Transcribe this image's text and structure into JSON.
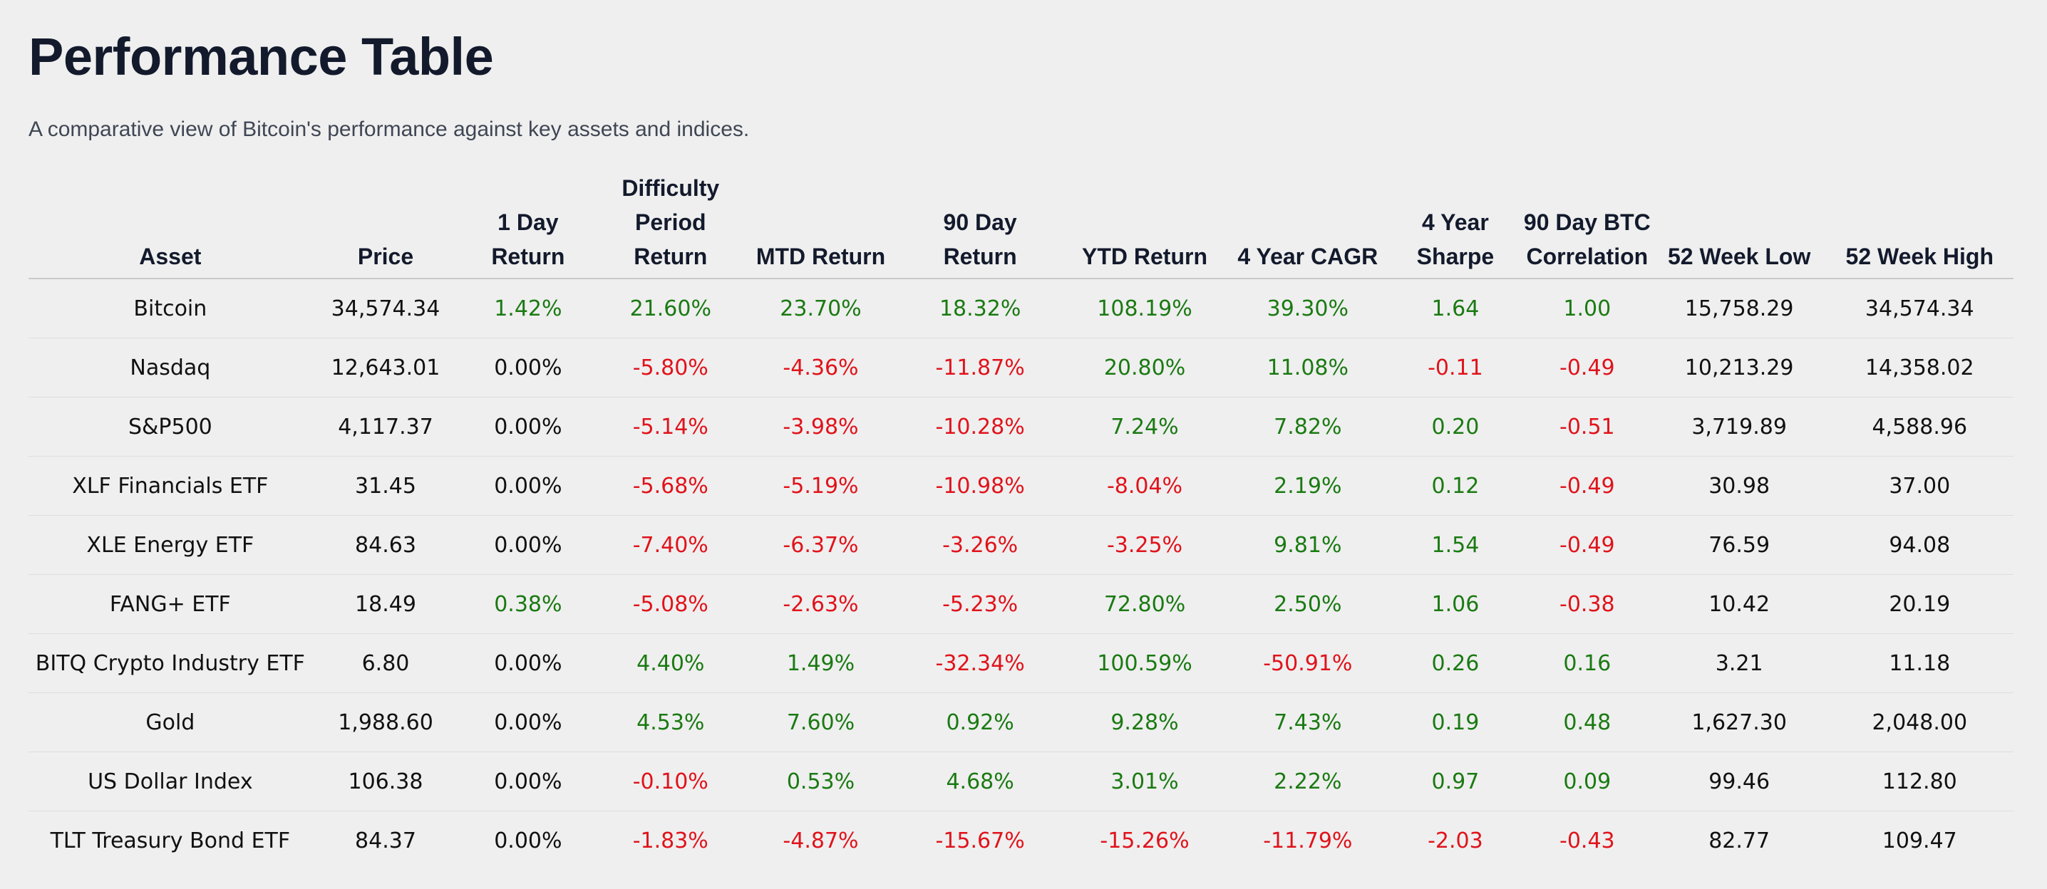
{
  "page": {
    "title": "Performance Table",
    "subtitle": "A comparative view of Bitcoin's performance against key assets and indices."
  },
  "colors": {
    "positive": "#1a7a12",
    "negative": "#e0131b",
    "neutral": "#111111",
    "title": "#131a2c",
    "background": "#efefef"
  },
  "table": {
    "headers": [
      {
        "key": "asset",
        "label": "Asset"
      },
      {
        "key": "price",
        "label": "Price"
      },
      {
        "key": "d1",
        "label": "1 Day Return"
      },
      {
        "key": "diff",
        "label": "Difficulty Period Return"
      },
      {
        "key": "mtd",
        "label": "MTD Return"
      },
      {
        "key": "d90",
        "label": "90 Day Return"
      },
      {
        "key": "ytd",
        "label": "YTD Return"
      },
      {
        "key": "cagr",
        "label": "4 Year CAGR"
      },
      {
        "key": "sharpe",
        "label": "4 Year Sharpe"
      },
      {
        "key": "corr",
        "label": "90 Day BTC Correlation"
      },
      {
        "key": "low",
        "label": "52 Week Low"
      },
      {
        "key": "high",
        "label": "52 Week High"
      }
    ],
    "rows": [
      {
        "asset": "Bitcoin",
        "price": "34,574.34",
        "d1": "1.42%",
        "diff": "21.60%",
        "mtd": "23.70%",
        "d90": "18.32%",
        "ytd": "108.19%",
        "cagr": "39.30%",
        "sharpe": "1.64",
        "corr": "1.00",
        "low": "15,758.29",
        "high": "34,574.34"
      },
      {
        "asset": "Nasdaq",
        "price": "12,643.01",
        "d1": "0.00%",
        "diff": "-5.80%",
        "mtd": "-4.36%",
        "d90": "-11.87%",
        "ytd": "20.80%",
        "cagr": "11.08%",
        "sharpe": "-0.11",
        "corr": "-0.49",
        "low": "10,213.29",
        "high": "14,358.02"
      },
      {
        "asset": "S&P500",
        "price": "4,117.37",
        "d1": "0.00%",
        "diff": "-5.14%",
        "mtd": "-3.98%",
        "d90": "-10.28%",
        "ytd": "7.24%",
        "cagr": "7.82%",
        "sharpe": "0.20",
        "corr": "-0.51",
        "low": "3,719.89",
        "high": "4,588.96"
      },
      {
        "asset": "XLF Financials ETF",
        "price": "31.45",
        "d1": "0.00%",
        "diff": "-5.68%",
        "mtd": "-5.19%",
        "d90": "-10.98%",
        "ytd": "-8.04%",
        "cagr": "2.19%",
        "sharpe": "0.12",
        "corr": "-0.49",
        "low": "30.98",
        "high": "37.00"
      },
      {
        "asset": "XLE Energy ETF",
        "price": "84.63",
        "d1": "0.00%",
        "diff": "-7.40%",
        "mtd": "-6.37%",
        "d90": "-3.26%",
        "ytd": "-3.25%",
        "cagr": "9.81%",
        "sharpe": "1.54",
        "corr": "-0.49",
        "low": "76.59",
        "high": "94.08"
      },
      {
        "asset": "FANG+ ETF",
        "price": "18.49",
        "d1": "0.38%",
        "diff": "-5.08%",
        "mtd": "-2.63%",
        "d90": "-5.23%",
        "ytd": "72.80%",
        "cagr": "2.50%",
        "sharpe": "1.06",
        "corr": "-0.38",
        "low": "10.42",
        "high": "20.19"
      },
      {
        "asset": "BITQ Crypto Industry ETF",
        "price": "6.80",
        "d1": "0.00%",
        "diff": "4.40%",
        "mtd": "1.49%",
        "d90": "-32.34%",
        "ytd": "100.59%",
        "cagr": "-50.91%",
        "sharpe": "0.26",
        "corr": "0.16",
        "low": "3.21",
        "high": "11.18"
      },
      {
        "asset": "Gold",
        "price": "1,988.60",
        "d1": "0.00%",
        "diff": "4.53%",
        "mtd": "7.60%",
        "d90": "0.92%",
        "ytd": "9.28%",
        "cagr": "7.43%",
        "sharpe": "0.19",
        "corr": "0.48",
        "low": "1,627.30",
        "high": "2,048.00"
      },
      {
        "asset": "US Dollar Index",
        "price": "106.38",
        "d1": "0.00%",
        "diff": "-0.10%",
        "mtd": "0.53%",
        "d90": "4.68%",
        "ytd": "3.01%",
        "cagr": "2.22%",
        "sharpe": "0.97",
        "corr": "0.09",
        "low": "99.46",
        "high": "112.80"
      },
      {
        "asset": "TLT Treasury Bond ETF",
        "price": "84.37",
        "d1": "0.00%",
        "diff": "-1.83%",
        "mtd": "-4.87%",
        "d90": "-15.67%",
        "ytd": "-15.26%",
        "cagr": "-11.79%",
        "sharpe": "-2.03",
        "corr": "-0.43",
        "low": "82.77",
        "high": "109.47"
      }
    ]
  }
}
